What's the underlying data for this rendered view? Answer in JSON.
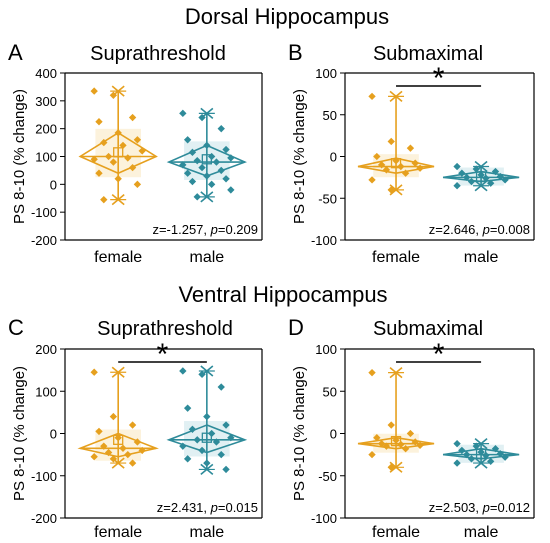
{
  "section_titles": {
    "top": "Dorsal Hippocampus",
    "bottom": "Ventral Hippocampus"
  },
  "colors": {
    "female": "#E6A01E",
    "male": "#2E8B9A",
    "female_fill": "#F6D99A",
    "male_fill": "#A8D5DC"
  },
  "chart_data": [
    {
      "panel": "A",
      "title": "Suprathreshold",
      "type": "scatter",
      "ylabel": "PS 8-10 (% change)",
      "ylim": [
        -200,
        400
      ],
      "yticks": [
        -200,
        -100,
        0,
        100,
        200,
        300,
        400
      ],
      "categories": [
        "female",
        "male"
      ],
      "stat": "z=-1.257, p=0.209",
      "stat_z": "z=-1.257,",
      "stat_p_label": "p",
      "stat_p_value": "=0.209",
      "significant": false,
      "groups": [
        {
          "name": "female",
          "median": 100,
          "mean": 115,
          "min": -55,
          "max": 335,
          "q1": 40,
          "q3": 185,
          "points": [
            335,
            320,
            240,
            225,
            185,
            160,
            150,
            140,
            120,
            100,
            95,
            90,
            80,
            60,
            40,
            20,
            0,
            -55
          ]
        },
        {
          "name": "male",
          "median": 80,
          "mean": 90,
          "min": -45,
          "max": 255,
          "q1": 30,
          "q3": 140,
          "points": [
            255,
            240,
            200,
            160,
            140,
            125,
            115,
            100,
            95,
            85,
            80,
            70,
            60,
            50,
            40,
            30,
            20,
            10,
            0,
            -20,
            -45
          ]
        }
      ]
    },
    {
      "panel": "B",
      "title": "Submaximal",
      "type": "scatter",
      "ylabel": "PS 8-10 (% change)",
      "ylim": [
        -100,
        100
      ],
      "yticks": [
        -100,
        -50,
        0,
        50,
        100
      ],
      "categories": [
        "female",
        "male"
      ],
      "stat": "z=2.646, p=0.008",
      "stat_z": "z=2.646,",
      "stat_p_label": "p",
      "stat_p_value": "=0.008",
      "significant": true,
      "sig_marker": "*",
      "groups": [
        {
          "name": "female",
          "median": -12,
          "mean": -8,
          "min": -40,
          "max": 72,
          "q1": -20,
          "q3": -2,
          "points": [
            72,
            18,
            10,
            0,
            -5,
            -8,
            -10,
            -12,
            -14,
            -16,
            -20,
            -28,
            -40
          ]
        },
        {
          "name": "male",
          "median": -25,
          "mean": -24,
          "min": -35,
          "max": -12,
          "q1": -30,
          "q3": -18,
          "points": [
            -12,
            -15,
            -18,
            -20,
            -22,
            -24,
            -25,
            -26,
            -28,
            -30,
            -32,
            -35
          ]
        }
      ]
    },
    {
      "panel": "C",
      "title": "Suprathreshold",
      "type": "scatter",
      "ylabel": "PS 8-10 (% change)",
      "ylim": [
        -200,
        200
      ],
      "yticks": [
        -200,
        -100,
        0,
        100,
        200
      ],
      "categories": [
        "female",
        "male"
      ],
      "stat": "z=2.431, p=0.015",
      "stat_z": "z=2.431,",
      "stat_p_label": "p",
      "stat_p_value": "=0.015",
      "significant": true,
      "sig_marker": "*",
      "groups": [
        {
          "name": "female",
          "median": -35,
          "mean": -15,
          "min": -70,
          "max": 145,
          "q1": -55,
          "q3": 0,
          "points": [
            145,
            40,
            20,
            5,
            -10,
            -20,
            -30,
            -35,
            -40,
            -45,
            -50,
            -55,
            -60,
            -70
          ]
        },
        {
          "name": "male",
          "median": -15,
          "mean": -10,
          "min": -85,
          "max": 148,
          "q1": -45,
          "q3": 20,
          "points": [
            148,
            140,
            110,
            60,
            40,
            20,
            10,
            0,
            -10,
            -15,
            -20,
            -30,
            -40,
            -50,
            -60,
            -70,
            -85
          ]
        }
      ]
    },
    {
      "panel": "D",
      "title": "Submaximal",
      "type": "scatter",
      "ylabel": "PS 8-10 (% change)",
      "ylim": [
        -100,
        100
      ],
      "yticks": [
        -100,
        -50,
        0,
        50,
        100
      ],
      "categories": [
        "female",
        "male"
      ],
      "stat": "z=2.503, p=0.012",
      "stat_z": "z=2.503,",
      "stat_p_label": "p",
      "stat_p_value": "=0.012",
      "significant": true,
      "sig_marker": "*",
      "groups": [
        {
          "name": "female",
          "median": -12,
          "mean": -9,
          "min": -40,
          "max": 72,
          "q1": -18,
          "q3": -5,
          "points": [
            72,
            10,
            0,
            -5,
            -8,
            -10,
            -12,
            -13,
            -14,
            -15,
            -18,
            -25,
            -40
          ]
        },
        {
          "name": "male",
          "median": -25,
          "mean": -24,
          "min": -35,
          "max": -12,
          "q1": -30,
          "q3": -18,
          "points": [
            -12,
            -15,
            -18,
            -20,
            -22,
            -24,
            -25,
            -26,
            -28,
            -30,
            -33,
            -35
          ]
        }
      ]
    }
  ]
}
